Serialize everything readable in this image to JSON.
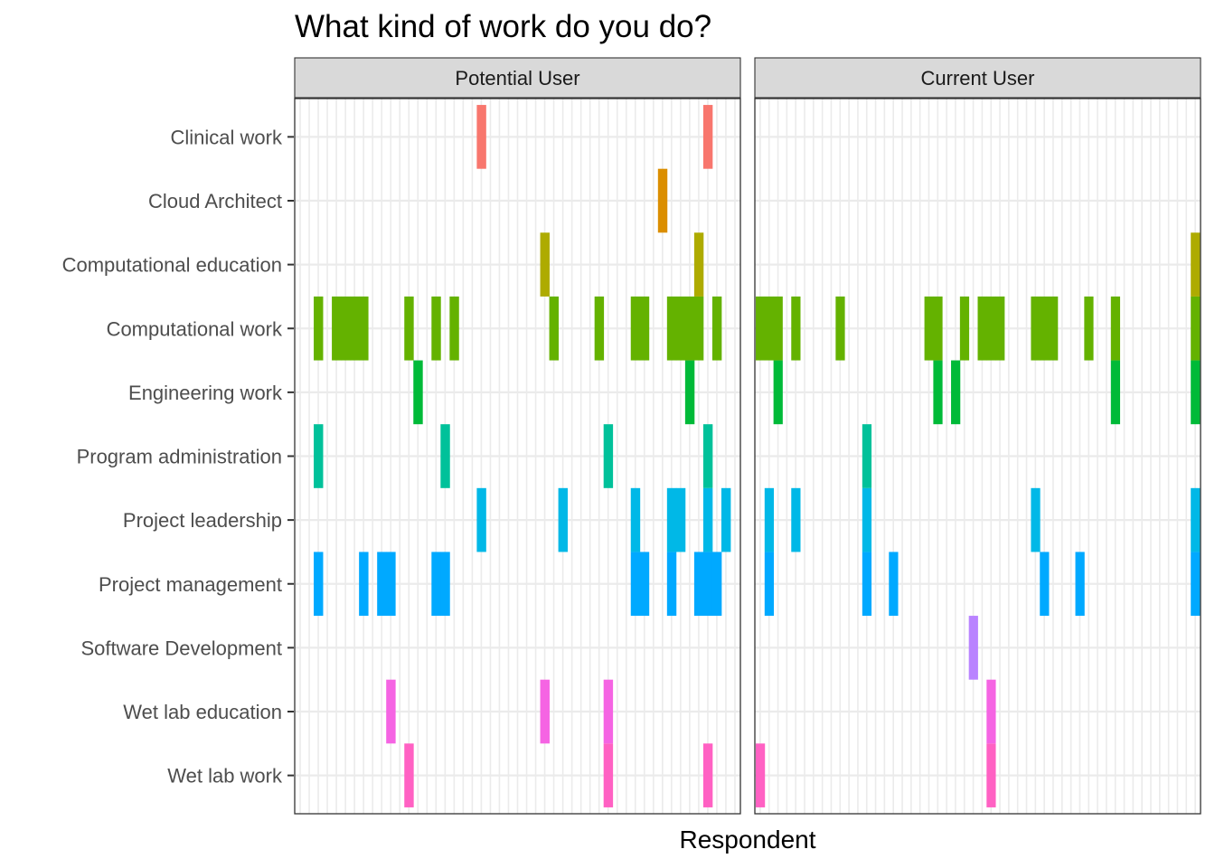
{
  "chart_data": {
    "type": "heatmap",
    "title": "What kind of work do you do?",
    "xlabel": "Respondent",
    "ylabel": "",
    "grid": true,
    "categories": [
      "Wet lab work",
      "Wet lab education",
      "Software Development",
      "Project management",
      "Project leadership",
      "Program administration",
      "Engineering work",
      "Computational work",
      "Computational education",
      "Cloud Architect",
      "Clinical work"
    ],
    "colors": {
      "Wet lab work": "#ff61c3",
      "Wet lab education": "#f564e3",
      "Software Development": "#b983ff",
      "Project management": "#00a9ff",
      "Project leadership": "#00b8e7",
      "Program administration": "#00c19a",
      "Engineering work": "#00ba38",
      "Computational work": "#64b200",
      "Computational education": "#aeab00",
      "Cloud Architect": "#db8e00",
      "Clinical work": "#f8766d"
    },
    "panels": [
      {
        "name": "Potential User",
        "respondent_count": 49,
        "marks": {
          "Wet lab work": [
            13,
            35,
            46
          ],
          "Wet lab education": [
            11,
            28,
            35
          ],
          "Software Development": [],
          "Project management": [
            3,
            8,
            10,
            11,
            16,
            17,
            38,
            39,
            42,
            45,
            46,
            47
          ],
          "Project leadership": [
            21,
            30,
            38,
            42,
            43,
            46,
            48
          ],
          "Program administration": [
            3,
            17,
            35,
            46
          ],
          "Engineering work": [
            14,
            44
          ],
          "Computational work": [
            3,
            5,
            6,
            7,
            8,
            13,
            16,
            18,
            29,
            34,
            38,
            39,
            42,
            43,
            44,
            45,
            47
          ],
          "Computational education": [
            28,
            45
          ],
          "Cloud Architect": [
            41
          ],
          "Clinical work": [
            21,
            46
          ]
        }
      },
      {
        "name": "Current User",
        "respondent_count": 50,
        "marks": {
          "Wet lab work": [
            1,
            27
          ],
          "Wet lab education": [
            27
          ],
          "Software Development": [
            25
          ],
          "Project management": [
            2,
            13,
            16,
            33,
            37,
            50
          ],
          "Project leadership": [
            2,
            5,
            13,
            32,
            50
          ],
          "Program administration": [
            13
          ],
          "Engineering work": [
            3,
            21,
            23,
            41,
            50
          ],
          "Computational work": [
            1,
            2,
            3,
            5,
            10,
            20,
            21,
            24,
            26,
            27,
            28,
            32,
            33,
            34,
            38,
            41,
            50
          ],
          "Computational education": [
            50
          ],
          "Cloud Architect": [],
          "Clinical work": []
        }
      }
    ]
  }
}
